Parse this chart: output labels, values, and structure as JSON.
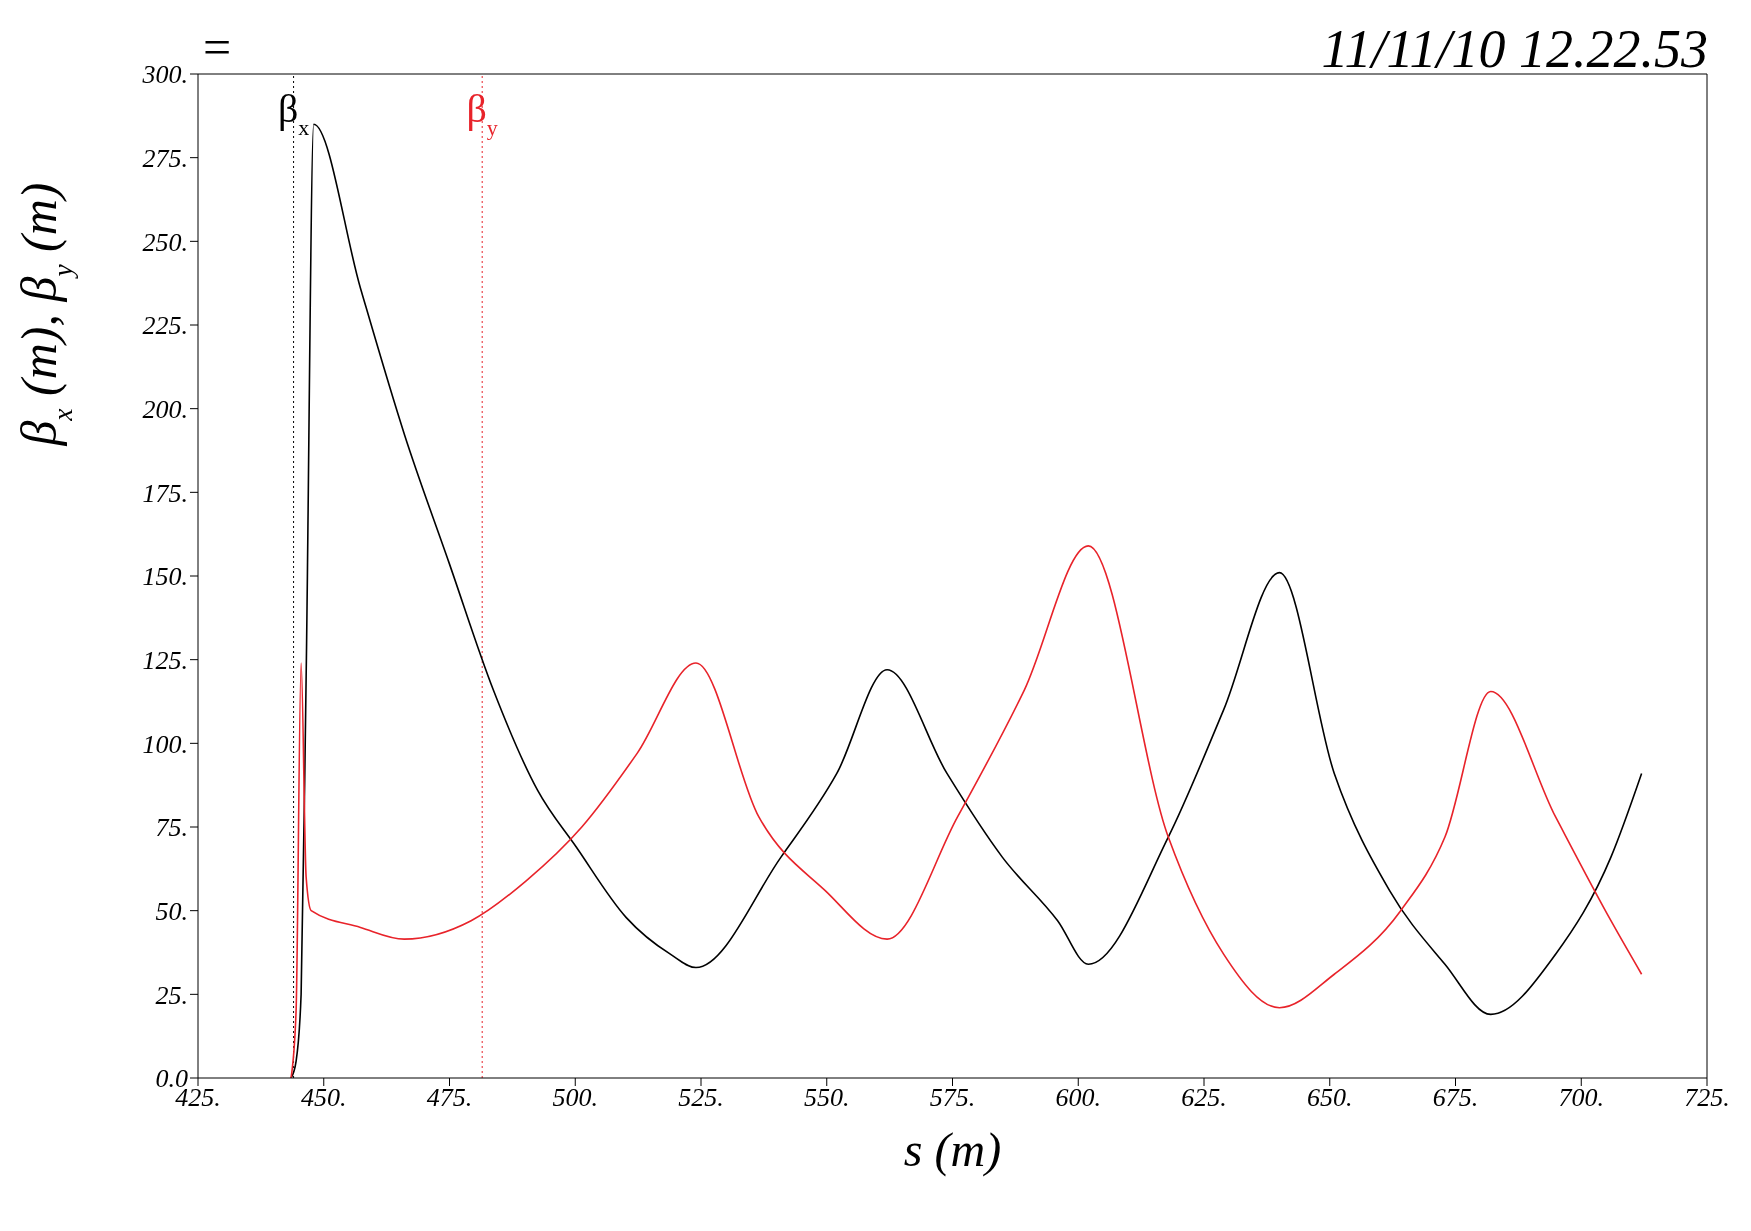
{
  "chart_data": {
    "type": "line",
    "title": "11/11/10 12.22.53",
    "xlabel": "s (m)",
    "ylabel": "β$_{x}$ (m),  β$_{y}$ (m)",
    "annotations": [
      "="
    ],
    "xlim": [
      425,
      725
    ],
    "ylim": [
      0,
      300
    ],
    "xticks": [
      {
        "value": 425,
        "label": "425."
      },
      {
        "value": 450,
        "label": "450."
      },
      {
        "value": 475,
        "label": "475."
      },
      {
        "value": 500,
        "label": "500."
      },
      {
        "value": 525,
        "label": "525."
      },
      {
        "value": 550,
        "label": "550."
      },
      {
        "value": 575,
        "label": "575."
      },
      {
        "value": 600,
        "label": "600."
      },
      {
        "value": 625,
        "label": "625."
      },
      {
        "value": 650,
        "label": "650."
      },
      {
        "value": 675,
        "label": "675."
      },
      {
        "value": 700,
        "label": "700."
      },
      {
        "value": 725,
        "label": "725."
      }
    ],
    "yticks": [
      {
        "value": 0,
        "label": "0.0"
      },
      {
        "value": 25,
        "label": "25."
      },
      {
        "value": 50,
        "label": "50."
      },
      {
        "value": 75,
        "label": "75."
      },
      {
        "value": 100,
        "label": "100."
      },
      {
        "value": 125,
        "label": "125."
      },
      {
        "value": 150,
        "label": "150."
      },
      {
        "value": 175,
        "label": "175."
      },
      {
        "value": 200,
        "label": "200."
      },
      {
        "value": 225,
        "label": "225."
      },
      {
        "value": 250,
        "label": "250."
      },
      {
        "value": 275,
        "label": "275."
      },
      {
        "value": 300,
        "label": "300."
      }
    ],
    "grid": false,
    "legend": false,
    "marker": "none",
    "line_style": "solid",
    "ref_lines": [
      {
        "axis": "x",
        "value": 444,
        "label": "β$_{x}$",
        "color": "#000000",
        "line_style": "dotted"
      },
      {
        "axis": "x",
        "value": 481.5,
        "label": "β$_{y}$",
        "color": "#e8232a",
        "line_style": "dotted"
      }
    ],
    "series": [
      {
        "color": "#000000",
        "x": [
          443.5,
          444.5,
          445.5,
          446.5,
          448,
          457.3,
          466.1,
          474.9,
          483.7,
          492.5,
          500.2,
          510.1,
          518.9,
          524,
          540.9,
          552,
          562,
          573.9,
          584.9,
          595.9,
          602,
          617.9,
          628.9,
          640,
          650.9,
          661.9,
          672.9,
          682,
          694.9,
          705.9,
          712
        ],
        "values": [
          0,
          5,
          25,
          120,
          285,
          236,
          192,
          154,
          116,
          86,
          69,
          48,
          37,
          33,
          66,
          91,
          122,
          91,
          66,
          47,
          34,
          72,
          110,
          151,
          91,
          56,
          34,
          19,
          37,
          66,
          91
        ]
      },
      {
        "color": "#e8232a",
        "x": [
          443.5,
          444.5,
          445.5,
          446.5,
          447.5,
          457.3,
          466,
          479.3,
          490.3,
          501.3,
          512.3,
          524,
          536.5,
          549.7,
          562,
          576,
          589.3,
          602,
          617.9,
          628.9,
          640,
          650.9,
          664.1,
          672.9,
          682,
          694.9,
          705.9,
          712
        ],
        "values": [
          0,
          20,
          124,
          60,
          50,
          45,
          41.5,
          47,
          59,
          75,
          97,
          124,
          78,
          56,
          41.5,
          78,
          116,
          159,
          72,
          37,
          21,
          31,
          50,
          72,
          115.5,
          78,
          47,
          31
        ]
      }
    ]
  }
}
